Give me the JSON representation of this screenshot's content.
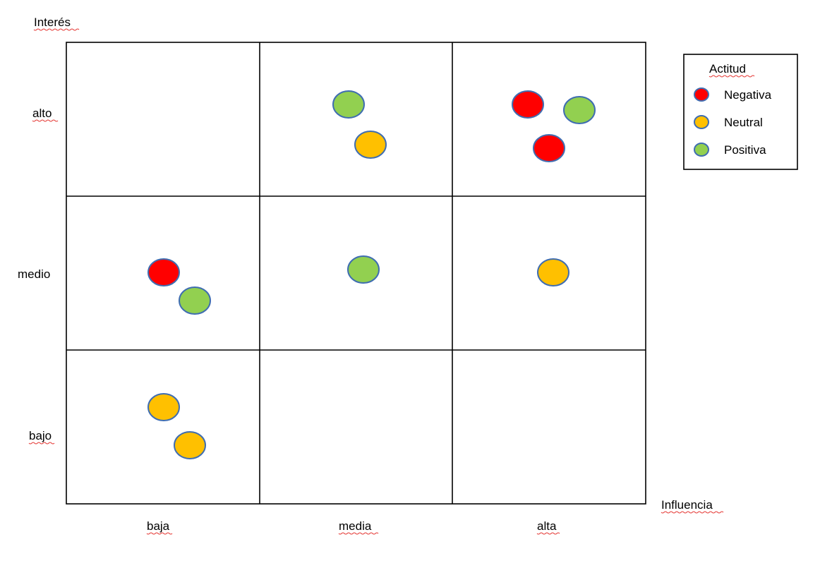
{
  "y_axis_title": "Interés",
  "x_axis_title": "Influencia",
  "rows": [
    "alto",
    "medio",
    "bajo"
  ],
  "cols": [
    "baja",
    "media",
    "alta"
  ],
  "legend": {
    "title": "Actitud",
    "items": [
      {
        "key": "negativa",
        "label": "Negativa",
        "color": "#ff0000"
      },
      {
        "key": "neutral",
        "label": "Neutral",
        "color": "#ffc000"
      },
      {
        "key": "positiva",
        "label": "Positiva",
        "color": "#92d050"
      }
    ]
  },
  "points": [
    {
      "row": "alto",
      "col": "media",
      "attitude": "positiva"
    },
    {
      "row": "alto",
      "col": "media",
      "attitude": "neutral"
    },
    {
      "row": "alto",
      "col": "alta",
      "attitude": "negativa"
    },
    {
      "row": "alto",
      "col": "alta",
      "attitude": "positiva"
    },
    {
      "row": "alto",
      "col": "alta",
      "attitude": "negativa"
    },
    {
      "row": "medio",
      "col": "baja",
      "attitude": "negativa"
    },
    {
      "row": "medio",
      "col": "baja",
      "attitude": "positiva"
    },
    {
      "row": "medio",
      "col": "media",
      "attitude": "positiva"
    },
    {
      "row": "medio",
      "col": "alta",
      "attitude": "neutral"
    },
    {
      "row": "bajo",
      "col": "baja",
      "attitude": "neutral"
    },
    {
      "row": "bajo",
      "col": "baja",
      "attitude": "neutral"
    }
  ]
}
